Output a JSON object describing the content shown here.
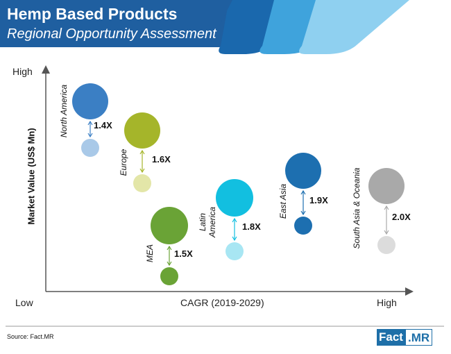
{
  "header": {
    "title": "Hemp Based Products",
    "subtitle": "Regional Opportunity Assessment"
  },
  "source": "Source: Fact.MR",
  "logo": {
    "part1": "Fact",
    "part2": ".MR"
  },
  "chart_data": {
    "type": "scatter",
    "xlabel": "CAGR (2019-2029)",
    "ylabel": "Market Value (US$ Mn)",
    "x_tick_labels": [
      "Low",
      "High"
    ],
    "y_tick_labels": [
      "Low",
      "High"
    ],
    "regions": [
      {
        "name": "North America",
        "multiplier": "1.4X",
        "color": "#3b7fc4",
        "light": "#a9c9e8"
      },
      {
        "name": "Europe",
        "multiplier": "1.6X",
        "color": "#a5b52a",
        "light": "#e3e6a8"
      },
      {
        "name": "MEA",
        "multiplier": "1.5X",
        "color": "#6aa336",
        "light": "#6aa336"
      },
      {
        "name": "Latin America",
        "multiplier": "1.8X",
        "color": "#12bfe0",
        "light": "#a8e6f3"
      },
      {
        "name": "East Asia",
        "multiplier": "1.9X",
        "color": "#1d6fb0",
        "light": "#1d6fb0"
      },
      {
        "name": "South Asia & Oceania",
        "multiplier": "2.0X",
        "color": "#a9a9a9",
        "light": "#dcdcdc"
      }
    ]
  }
}
